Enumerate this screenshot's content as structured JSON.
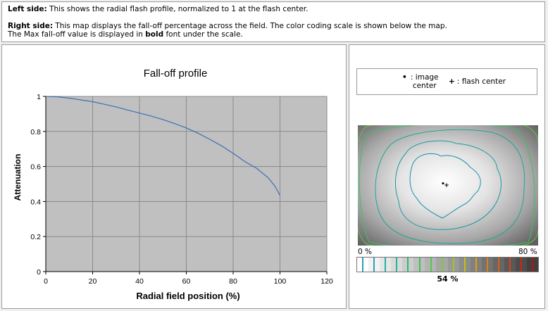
{
  "info": {
    "left_label": "Left side:",
    "left_text": " This shows the radial flash profile, normalized to 1 at the flash center.",
    "right_label": "Right side:",
    "right_text": " This map displays the fall-off percentage across the field. The color coding scale is shown below the map.",
    "line3_pre": "The Max fall-off value is displayed in ",
    "line3_bold": "bold",
    "line3_post": " font under the scale."
  },
  "legend": {
    "image_center_glyph": "•",
    "image_center_label": ": image center",
    "flash_center_glyph": "+",
    "flash_center_label": ": flash center"
  },
  "scale": {
    "min_label": "0 %",
    "max_label": "80 %",
    "max_falloff": "54 %",
    "tick_colors": [
      "#2aa0b8",
      "#2aa0b8",
      "#26b0a8",
      "#22b890",
      "#20c070",
      "#30c850",
      "#50cc40",
      "#7acc30",
      "#a0c820",
      "#c8c010",
      "#e0a010",
      "#e08010",
      "#e06010",
      "#e04010",
      "#d82010",
      "#c01010"
    ],
    "background_gradient": [
      "#ffffff",
      "#404040"
    ]
  },
  "map": {
    "contour_colors": [
      "#1a8fa8",
      "#1a9aa0",
      "#20a890",
      "#40c060",
      "#60c840"
    ]
  },
  "chart_data": {
    "type": "line",
    "title": "Fall-off profile",
    "xlabel": "Radial field position (%)",
    "ylabel": "Attenuation",
    "xlim": [
      0,
      120
    ],
    "ylim": [
      0,
      1
    ],
    "xticks": [
      0,
      20,
      40,
      60,
      80,
      100,
      120
    ],
    "yticks": [
      0,
      0.2,
      0.4,
      0.6,
      0.8,
      1
    ],
    "grid": true,
    "background": "#c0c0c0",
    "series": [
      {
        "color": "#3a70b8",
        "x": [
          0,
          5,
          10,
          15,
          20,
          25,
          30,
          35,
          40,
          45,
          50,
          55,
          60,
          65,
          70,
          75,
          80,
          85,
          90,
          95,
          98,
          100
        ],
        "y": [
          1.0,
          0.997,
          0.99,
          0.98,
          0.97,
          0.955,
          0.94,
          0.922,
          0.905,
          0.888,
          0.868,
          0.845,
          0.82,
          0.79,
          0.755,
          0.718,
          0.675,
          0.628,
          0.59,
          0.535,
          0.485,
          0.435
        ]
      }
    ]
  }
}
